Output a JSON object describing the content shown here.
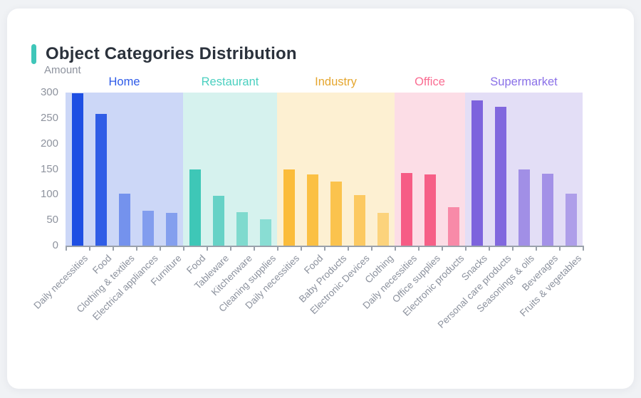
{
  "page": {
    "background": "#f0f2f5",
    "card_background": "#ffffff"
  },
  "header": {
    "title": "Object Categories Distribution",
    "accent_color": "#3fc6b9"
  },
  "chart_data": {
    "type": "bar",
    "title": "Object Categories Distribution",
    "ylabel": "Amount",
    "xlabel": "",
    "ylim": [
      0,
      300
    ],
    "yticks": [
      0,
      50,
      100,
      150,
      200,
      250,
      300
    ],
    "grid": false,
    "legend_position": "group-headers-top",
    "axis_text_color": "#8e939e",
    "axis_line_color": "#9aa1ab",
    "groups": [
      {
        "name": "Home",
        "color": "#1e4fe3",
        "label_color": "#2d5ae8",
        "panel_color": "#ccd7f7",
        "items": [
          {
            "label": "Daily necessities",
            "value": 298
          },
          {
            "label": "Food",
            "value": 258
          },
          {
            "label": "Clothing & textiles",
            "value": 102
          },
          {
            "label": "Electrical appliances",
            "value": 69
          },
          {
            "label": "Furniture",
            "value": 64
          }
        ]
      },
      {
        "name": "Restaurant",
        "color": "#3ec7b7",
        "label_color": "#4bd0c0",
        "panel_color": "#d6f2ee",
        "items": [
          {
            "label": "Food",
            "value": 150
          },
          {
            "label": "Tableware",
            "value": 98
          },
          {
            "label": "Kitchenware",
            "value": 65
          },
          {
            "label": "Cleaning supplies",
            "value": 51
          }
        ]
      },
      {
        "name": "Industry",
        "color": "#fbbc3a",
        "label_color": "#e5a62e",
        "panel_color": "#fdf0d2",
        "items": [
          {
            "label": "Daily necessities",
            "value": 150
          },
          {
            "label": "Food",
            "value": 139
          },
          {
            "label": "Baby Products",
            "value": 126
          },
          {
            "label": "Electronic Devices",
            "value": 99
          },
          {
            "label": "Clothing",
            "value": 64
          }
        ]
      },
      {
        "name": "Office",
        "color": "#f65c85",
        "label_color": "#fa6d92",
        "panel_color": "#fcdde6",
        "items": [
          {
            "label": "Daily necessities",
            "value": 143
          },
          {
            "label": "Office supplies",
            "value": 139
          },
          {
            "label": "Electronic products",
            "value": 75
          }
        ]
      },
      {
        "name": "Supermarket",
        "color": "#7d63dd",
        "label_color": "#8a70e8",
        "panel_color": "#e3def6",
        "items": [
          {
            "label": "Snacks",
            "value": 285
          },
          {
            "label": "Personal care products",
            "value": 272
          },
          {
            "label": "Seasonings & oils",
            "value": 149
          },
          {
            "label": "Beverages",
            "value": 141
          },
          {
            "label": "Fruits & vegetables",
            "value": 102
          }
        ]
      }
    ]
  }
}
